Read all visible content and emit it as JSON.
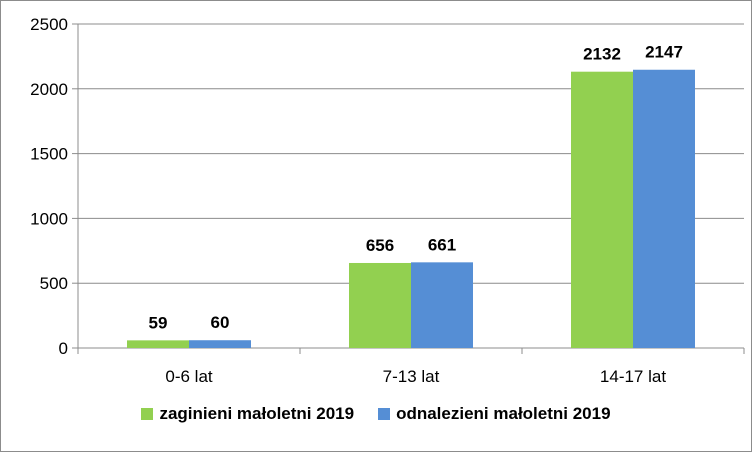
{
  "chart_data": {
    "type": "bar",
    "title": "",
    "xlabel": "",
    "ylabel": "",
    "ylim": [
      0,
      2500
    ],
    "yticks": [
      0,
      500,
      1000,
      1500,
      2000,
      2500
    ],
    "grid": true,
    "legend_position": "bottom",
    "categories": [
      "0-6 lat",
      "7-13 lat",
      "14-17 lat"
    ],
    "series": [
      {
        "name": "zaginieni małoletni 2019",
        "color": "#92d050",
        "values": [
          59,
          656,
          2132
        ]
      },
      {
        "name": "odnalezieni małoletni 2019",
        "color": "#558ed5",
        "values": [
          60,
          661,
          2147
        ]
      }
    ]
  }
}
